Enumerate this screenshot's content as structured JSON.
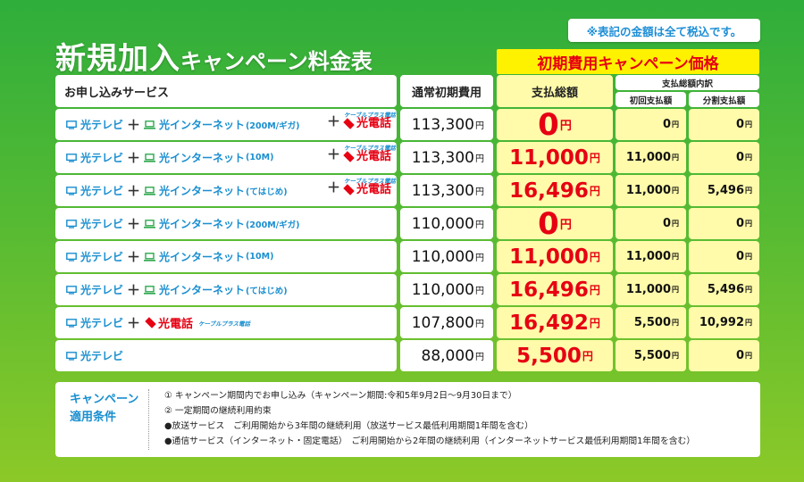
{
  "header": {
    "title_main": "新規加入",
    "title_sub": "キャンペーン料金表",
    "tax_note": "※表記の金額は全て税込です。",
    "campaign_banner": "初期費用キャンペーン価格"
  },
  "table": {
    "col_service": "お申し込みサービス",
    "col_normal": "通常初期費用",
    "col_total": "支払総額",
    "col_breakdown": "支払総額内訳",
    "col_first": "初回支払額",
    "col_installment": "分割支払額",
    "yen": "円",
    "rows": [
      {
        "tv": "光テレビ",
        "net": "光インターネット",
        "speed": "(200M/ギガ)",
        "phone": "光電話",
        "cable": "ケーブルプラス電話",
        "normal": "113,300",
        "total": "0",
        "first": "0",
        "installment": "0"
      },
      {
        "tv": "光テレビ",
        "net": "光インターネット",
        "speed": "(10M)",
        "phone": "光電話",
        "cable": "ケーブルプラス電話",
        "normal": "113,300",
        "total": "11,000",
        "first": "11,000",
        "installment": "0"
      },
      {
        "tv": "光テレビ",
        "net": "光インターネット",
        "speed": "(てはじめ)",
        "phone": "光電話",
        "cable": "ケーブルプラス電話",
        "normal": "113,300",
        "total": "16,496",
        "first": "11,000",
        "installment": "5,496"
      },
      {
        "tv": "光テレビ",
        "net": "光インターネット",
        "speed": "(200M/ギガ)",
        "normal": "110,000",
        "total": "0",
        "first": "0",
        "installment": "0"
      },
      {
        "tv": "光テレビ",
        "net": "光インターネット",
        "speed": "(10M)",
        "normal": "110,000",
        "total": "11,000",
        "first": "11,000",
        "installment": "0"
      },
      {
        "tv": "光テレビ",
        "net": "光インターネット",
        "speed": "(てはじめ)",
        "normal": "110,000",
        "total": "16,496",
        "first": "11,000",
        "installment": "5,496"
      },
      {
        "tv": "光テレビ",
        "phone": "光電話",
        "cable": "ケーブルプラス電話",
        "normal": "107,800",
        "total": "16,492",
        "first": "5,500",
        "installment": "10,992"
      },
      {
        "tv": "光テレビ",
        "normal": "88,000",
        "total": "5,500",
        "first": "5,500",
        "installment": "0"
      }
    ]
  },
  "conditions": {
    "label_line1": "キャンペーン",
    "label_line2": "適用条件",
    "lines": [
      "① キャンペーン期間内でお申し込み（キャンペーン期間:令和5年9月2日～9月30日まで）",
      "② 一定期間の継続利用約束",
      "●放送サービス　ご利用開始から3年間の継続利用（放送サービス最低利用期間1年間を含む）",
      "●通信サービス（インターネット・固定電話）　ご利用開始から2年間の継続利用（インターネットサービス最低利用期間1年間を含む）"
    ]
  },
  "colors": {
    "accent_red": "#e60012",
    "accent_blue": "#1a8fd0",
    "highlight_yellow": "#fff200",
    "cell_yellow": "#fffbaa"
  }
}
